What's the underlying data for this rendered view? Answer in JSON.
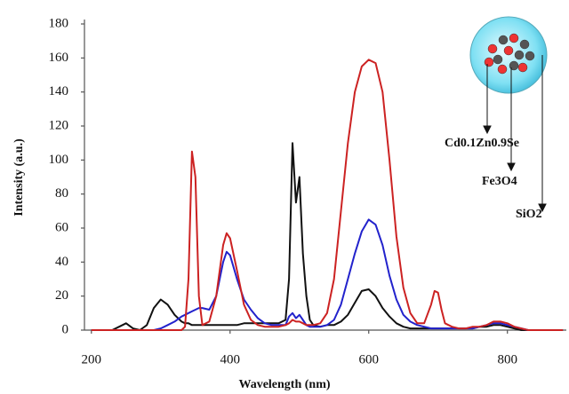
{
  "chart_data": {
    "type": "line",
    "xlabel": "Wavelength (nm)",
    "ylabel": "Intensity (a.u.)",
    "x": [
      200,
      210,
      220,
      230,
      240,
      250,
      260,
      270,
      280,
      290,
      300,
      310,
      320,
      330,
      335,
      340,
      345,
      350,
      355,
      360,
      370,
      380,
      390,
      395,
      400,
      410,
      420,
      430,
      440,
      450,
      460,
      470,
      480,
      485,
      490,
      495,
      500,
      505,
      510,
      515,
      520,
      530,
      540,
      550,
      560,
      570,
      580,
      590,
      600,
      610,
      620,
      630,
      640,
      650,
      660,
      670,
      680,
      690,
      695,
      700,
      705,
      710,
      720,
      730,
      740,
      750,
      760,
      770,
      780,
      790,
      800,
      810,
      820,
      830,
      840,
      850,
      860,
      870,
      880
    ],
    "series": [
      {
        "color": "#111111",
        "values": [
          0,
          0,
          0,
          0,
          2,
          4,
          1,
          0,
          3,
          13,
          18,
          15,
          9,
          5,
          4,
          4,
          3,
          3,
          3,
          3,
          3,
          3,
          3,
          3,
          3,
          3,
          4,
          4,
          4,
          4,
          4,
          4,
          6,
          30,
          110,
          75,
          90,
          45,
          20,
          6,
          3,
          2,
          3,
          3,
          5,
          9,
          16,
          23,
          24,
          20,
          13,
          8,
          4,
          2,
          1,
          1,
          1,
          1,
          1,
          1,
          1,
          1,
          1,
          1,
          1,
          1,
          2,
          2,
          3,
          3,
          2,
          1,
          0,
          0,
          0,
          0,
          0,
          0,
          0
        ]
      },
      {
        "color": "#2222cc",
        "values": [
          0,
          0,
          0,
          0,
          0,
          0,
          0,
          0,
          0,
          0,
          1,
          3,
          5,
          8,
          9,
          10,
          11,
          12,
          13,
          13,
          12,
          20,
          40,
          46,
          44,
          30,
          18,
          12,
          7,
          4,
          3,
          3,
          3,
          8,
          10,
          7,
          9,
          6,
          3,
          2,
          2,
          2,
          3,
          6,
          15,
          30,
          45,
          58,
          65,
          62,
          50,
          32,
          18,
          9,
          5,
          3,
          2,
          1,
          1,
          1,
          1,
          1,
          1,
          1,
          1,
          1,
          2,
          3,
          4,
          4,
          3,
          2,
          1,
          0,
          0,
          0,
          0,
          0,
          0
        ]
      },
      {
        "color": "#cc2222",
        "values": [
          0,
          0,
          0,
          0,
          0,
          0,
          0,
          0,
          0,
          0,
          0,
          0,
          0,
          0,
          2,
          30,
          105,
          90,
          20,
          3,
          5,
          20,
          50,
          57,
          54,
          35,
          15,
          6,
          3,
          2,
          2,
          2,
          3,
          4,
          6,
          5,
          5,
          4,
          3,
          3,
          3,
          4,
          10,
          30,
          70,
          110,
          140,
          155,
          159,
          157,
          140,
          100,
          55,
          25,
          10,
          4,
          4,
          15,
          23,
          22,
          12,
          4,
          2,
          1,
          1,
          2,
          2,
          3,
          5,
          5,
          4,
          2,
          1,
          0,
          0,
          0,
          0,
          0,
          0
        ]
      }
    ],
    "xlim": [
      190,
      885
    ],
    "xticks": [
      200,
      400,
      600,
      800
    ],
    "ylim": [
      0,
      180
    ],
    "yticks": [
      0,
      20,
      40,
      60,
      80,
      100,
      120,
      140,
      160,
      180
    ],
    "grid": false,
    "annotations": [
      "Cd0.1Zn0.9Se",
      "Fe3O4",
      "SiO2"
    ]
  }
}
